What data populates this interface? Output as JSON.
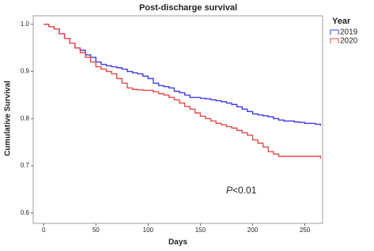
{
  "chart_data": {
    "type": "step-line",
    "title": "Post-discharge survival",
    "x_label": "Days",
    "y_label": "Cumulative Survival",
    "legend_title": "Year",
    "legend_position": "right",
    "annotation": [
      "P",
      "<0.01"
    ],
    "x": [
      0,
      5,
      10,
      15,
      20,
      25,
      30,
      35,
      40,
      45,
      50,
      55,
      60,
      65,
      70,
      75,
      80,
      85,
      90,
      95,
      100,
      105,
      110,
      115,
      120,
      125,
      130,
      135,
      140,
      145,
      150,
      155,
      160,
      165,
      170,
      175,
      180,
      185,
      190,
      195,
      200,
      205,
      210,
      215,
      220,
      225,
      230,
      235,
      240,
      245,
      250,
      255,
      260,
      265
    ],
    "series": [
      {
        "name": "2019",
        "color": "#3c3ce0",
        "values": [
          1.0,
          0.995,
          0.99,
          0.98,
          0.97,
          0.96,
          0.95,
          0.945,
          0.935,
          0.93,
          0.92,
          0.915,
          0.912,
          0.91,
          0.908,
          0.905,
          0.9,
          0.897,
          0.895,
          0.89,
          0.885,
          0.875,
          0.87,
          0.868,
          0.865,
          0.858,
          0.855,
          0.85,
          0.845,
          0.845,
          0.843,
          0.842,
          0.84,
          0.838,
          0.836,
          0.833,
          0.83,
          0.825,
          0.82,
          0.815,
          0.81,
          0.808,
          0.806,
          0.804,
          0.8,
          0.797,
          0.795,
          0.795,
          0.793,
          0.792,
          0.79,
          0.79,
          0.788,
          0.785
        ]
      },
      {
        "name": "2020",
        "color": "#e24a4a",
        "values": [
          1.0,
          0.995,
          0.99,
          0.98,
          0.97,
          0.96,
          0.95,
          0.94,
          0.93,
          0.92,
          0.91,
          0.905,
          0.9,
          0.895,
          0.885,
          0.875,
          0.865,
          0.862,
          0.861,
          0.86,
          0.86,
          0.857,
          0.853,
          0.85,
          0.845,
          0.84,
          0.833,
          0.826,
          0.82,
          0.812,
          0.805,
          0.8,
          0.795,
          0.79,
          0.787,
          0.783,
          0.78,
          0.775,
          0.77,
          0.765,
          0.755,
          0.748,
          0.74,
          0.73,
          0.725,
          0.72,
          0.72,
          0.72,
          0.72,
          0.72,
          0.72,
          0.72,
          0.72,
          0.715
        ]
      }
    ],
    "xlim": [
      -10,
      267
    ],
    "xticks": [
      0,
      50,
      100,
      150,
      200,
      250
    ],
    "ylim": [
      0.578,
      1.018
    ],
    "yticks": [
      0.6,
      0.7,
      0.8,
      0.9,
      {
        "value": 1,
        "label": "1.0"
      }
    ],
    "grid": false
  }
}
